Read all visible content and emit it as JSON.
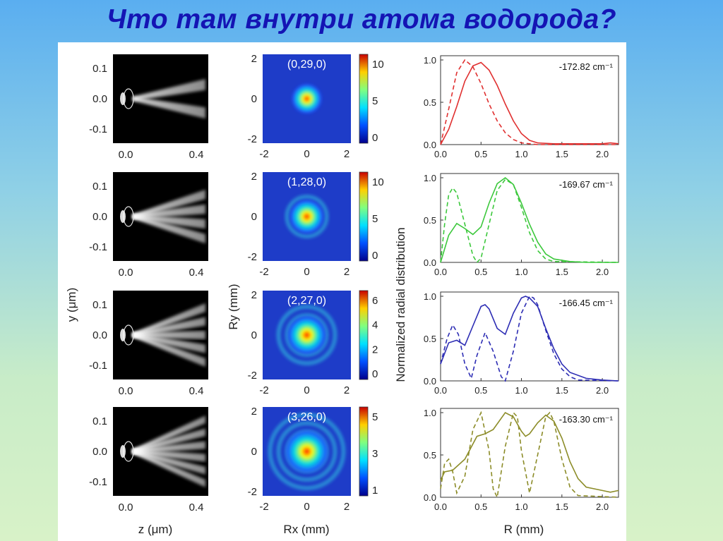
{
  "title": "Что там внутри атома водорода?",
  "colors": {
    "title": "#1414b4",
    "red": "#e03030",
    "green": "#3cc83c",
    "blue": "#2d2db4",
    "olive": "#8c8c28"
  },
  "panels": {
    "left": {
      "ylabel": "y (μm)",
      "xlabel": "z (μm)",
      "xticks": [
        "0.0",
        "0.4"
      ],
      "yticks": [
        "0.1",
        "0.0",
        "-0.1"
      ]
    },
    "middle": {
      "ylabel": "Ry (mm)",
      "xlabel": "Rx (mm)",
      "xticks": [
        "-2",
        "0",
        "2"
      ],
      "yticks": [
        "2",
        "0",
        "-2"
      ],
      "states": [
        "(0,29,0)",
        "(1,28,0)",
        "(2,27,0)",
        "(3,26,0)"
      ],
      "colorbars": [
        [
          "10",
          "5",
          "0"
        ],
        [
          "10",
          "5",
          "0"
        ],
        [
          "6",
          "4",
          "2",
          "0"
        ],
        [
          "5",
          "3",
          "1"
        ]
      ]
    },
    "right": {
      "ylabel": "Normalized radial distribution",
      "xlabel": "R (mm)",
      "xticks": [
        "0.0",
        "0.5",
        "1.0",
        "1.5",
        "2.0"
      ],
      "yticks": [
        "1.0",
        "0.5",
        "0.0"
      ],
      "energies": [
        "-172.82 cm⁻¹",
        "-169.67 cm⁻¹",
        "-166.45 cm⁻¹",
        "-163.30 cm⁻¹"
      ]
    }
  },
  "chart_data": [
    {
      "type": "line",
      "xlabel": "R (mm)",
      "ylabel": "Normalized radial distribution",
      "xlim": [
        0,
        2.2
      ],
      "ylim": [
        0,
        1.05
      ],
      "annotation": "-172.82 cm⁻¹",
      "series": [
        {
          "style": "solid",
          "color": "#e03030",
          "x": [
            0,
            0.1,
            0.2,
            0.3,
            0.4,
            0.5,
            0.6,
            0.7,
            0.8,
            0.9,
            1.0,
            1.1,
            1.2,
            1.4,
            1.6,
            1.8,
            2.0,
            2.1,
            2.2
          ],
          "y": [
            0,
            0.18,
            0.45,
            0.75,
            0.93,
            0.97,
            0.88,
            0.7,
            0.48,
            0.28,
            0.13,
            0.05,
            0.02,
            0.01,
            0.01,
            0.01,
            0.01,
            0.02,
            0.01
          ]
        },
        {
          "style": "dashed",
          "color": "#e03030",
          "x": [
            0,
            0.1,
            0.2,
            0.3,
            0.4,
            0.5,
            0.6,
            0.7,
            0.8,
            0.9,
            1.0,
            1.1,
            1.2,
            2.2
          ],
          "y": [
            0,
            0.42,
            0.85,
            1.0,
            0.92,
            0.72,
            0.48,
            0.28,
            0.14,
            0.06,
            0.02,
            0.01,
            0.0,
            0.0
          ]
        }
      ]
    },
    {
      "type": "line",
      "xlabel": "R (mm)",
      "ylabel": "Normalized radial distribution",
      "xlim": [
        0,
        2.2
      ],
      "ylim": [
        0,
        1.05
      ],
      "annotation": "-169.67 cm⁻¹",
      "series": [
        {
          "style": "solid",
          "color": "#3cc83c",
          "x": [
            0,
            0.1,
            0.2,
            0.3,
            0.4,
            0.5,
            0.6,
            0.7,
            0.8,
            0.9,
            1.0,
            1.1,
            1.2,
            1.3,
            1.4,
            1.6,
            1.8,
            2.2
          ],
          "y": [
            0,
            0.32,
            0.46,
            0.4,
            0.33,
            0.42,
            0.7,
            0.93,
            1.0,
            0.92,
            0.7,
            0.45,
            0.24,
            0.1,
            0.04,
            0.01,
            0.0,
            0.0
          ]
        },
        {
          "style": "dashed",
          "color": "#3cc83c",
          "x": [
            0,
            0.05,
            0.1,
            0.15,
            0.2,
            0.3,
            0.4,
            0.45,
            0.5,
            0.6,
            0.7,
            0.8,
            0.9,
            1.0,
            1.1,
            1.2,
            1.3,
            1.4,
            2.2
          ],
          "y": [
            0,
            0.45,
            0.8,
            0.88,
            0.82,
            0.45,
            0.08,
            0.0,
            0.05,
            0.45,
            0.85,
            0.98,
            0.92,
            0.65,
            0.35,
            0.14,
            0.04,
            0.01,
            0.0
          ]
        }
      ]
    },
    {
      "type": "line",
      "xlabel": "R (mm)",
      "ylabel": "Normalized radial distribution",
      "xlim": [
        0,
        2.2
      ],
      "ylim": [
        0,
        1.05
      ],
      "annotation": "-166.45 cm⁻¹",
      "series": [
        {
          "style": "solid",
          "color": "#2d2db4",
          "x": [
            0,
            0.1,
            0.2,
            0.3,
            0.4,
            0.5,
            0.55,
            0.6,
            0.7,
            0.8,
            0.9,
            1.0,
            1.05,
            1.1,
            1.2,
            1.3,
            1.4,
            1.5,
            1.6,
            1.8,
            2.0,
            2.2
          ],
          "y": [
            0.2,
            0.45,
            0.48,
            0.42,
            0.65,
            0.88,
            0.9,
            0.85,
            0.62,
            0.55,
            0.8,
            0.98,
            1.0,
            0.98,
            0.88,
            0.62,
            0.38,
            0.2,
            0.1,
            0.03,
            0.01,
            0.0
          ]
        },
        {
          "style": "dashed",
          "color": "#2d2db4",
          "x": [
            0,
            0.08,
            0.15,
            0.22,
            0.3,
            0.38,
            0.45,
            0.55,
            0.65,
            0.75,
            0.8,
            0.9,
            1.0,
            1.1,
            1.15,
            1.2,
            1.3,
            1.4,
            1.5,
            1.6,
            1.7,
            2.2
          ],
          "y": [
            0.2,
            0.5,
            0.66,
            0.55,
            0.2,
            0.03,
            0.3,
            0.57,
            0.35,
            0.05,
            0.0,
            0.35,
            0.8,
            1.0,
            0.98,
            0.9,
            0.6,
            0.32,
            0.14,
            0.05,
            0.01,
            0.0
          ]
        }
      ]
    },
    {
      "type": "line",
      "xlabel": "R (mm)",
      "ylabel": "Normalized radial distribution",
      "xlim": [
        0,
        2.2
      ],
      "ylim": [
        0,
        1.05
      ],
      "annotation": "-163.30 cm⁻¹",
      "series": [
        {
          "style": "solid",
          "color": "#8c8c28",
          "x": [
            0,
            0.05,
            0.15,
            0.3,
            0.45,
            0.55,
            0.65,
            0.8,
            0.9,
            1.0,
            1.05,
            1.1,
            1.2,
            1.3,
            1.4,
            1.5,
            1.6,
            1.7,
            1.8,
            2.0,
            2.1,
            2.2
          ],
          "y": [
            0.2,
            0.3,
            0.32,
            0.45,
            0.72,
            0.75,
            0.8,
            1.0,
            0.95,
            0.78,
            0.72,
            0.75,
            0.88,
            0.97,
            0.9,
            0.7,
            0.42,
            0.22,
            0.12,
            0.08,
            0.06,
            0.08
          ]
        },
        {
          "style": "dashed",
          "color": "#8c8c28",
          "x": [
            0,
            0.05,
            0.1,
            0.15,
            0.2,
            0.3,
            0.4,
            0.5,
            0.6,
            0.65,
            0.7,
            0.8,
            0.9,
            0.95,
            1.0,
            1.1,
            1.2,
            1.3,
            1.35,
            1.4,
            1.5,
            1.6,
            1.7,
            2.2
          ],
          "y": [
            0.1,
            0.4,
            0.45,
            0.3,
            0.05,
            0.25,
            0.8,
            1.0,
            0.55,
            0.1,
            0.0,
            0.6,
            1.0,
            0.95,
            0.55,
            0.05,
            0.5,
            0.95,
            1.0,
            0.9,
            0.45,
            0.12,
            0.02,
            0.0
          ]
        }
      ]
    }
  ]
}
